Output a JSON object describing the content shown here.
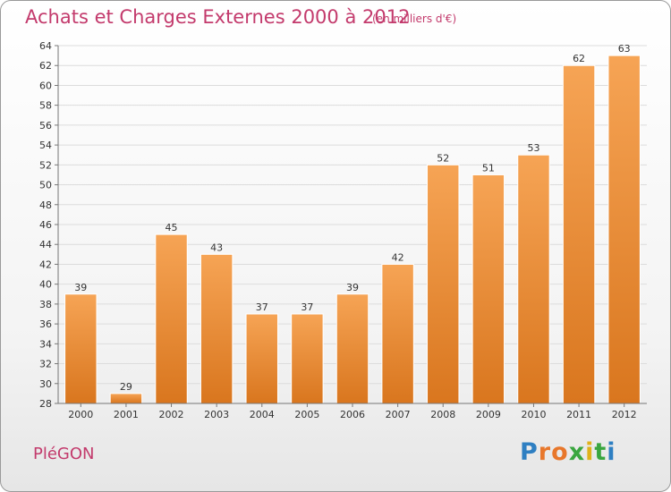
{
  "title": "Achats et Charges Externes 2000 à 2012",
  "subtitle": "(en milliers d'€)",
  "commune": "PléGON",
  "brand": {
    "letters": [
      "P",
      "r",
      "o",
      "x",
      "i",
      "t",
      "i"
    ],
    "colors": [
      "#2e7fc2",
      "#e8772b",
      "#e8772b",
      "#3aa63f",
      "#e0b21a",
      "#3aa63f",
      "#2e7fc2"
    ]
  },
  "chart_data": {
    "type": "bar",
    "categories": [
      "2000",
      "2001",
      "2002",
      "2003",
      "2004",
      "2005",
      "2006",
      "2007",
      "2008",
      "2009",
      "2010",
      "2011",
      "2012"
    ],
    "values": [
      39,
      29,
      45,
      43,
      37,
      37,
      39,
      42,
      52,
      51,
      53,
      62,
      63
    ],
    "ylim": [
      28,
      64
    ],
    "yticks": [
      28,
      30,
      32,
      34,
      36,
      38,
      40,
      42,
      44,
      46,
      48,
      50,
      52,
      54,
      56,
      58,
      60,
      62,
      64
    ],
    "grid": true,
    "bar_color": "#f0913a"
  }
}
